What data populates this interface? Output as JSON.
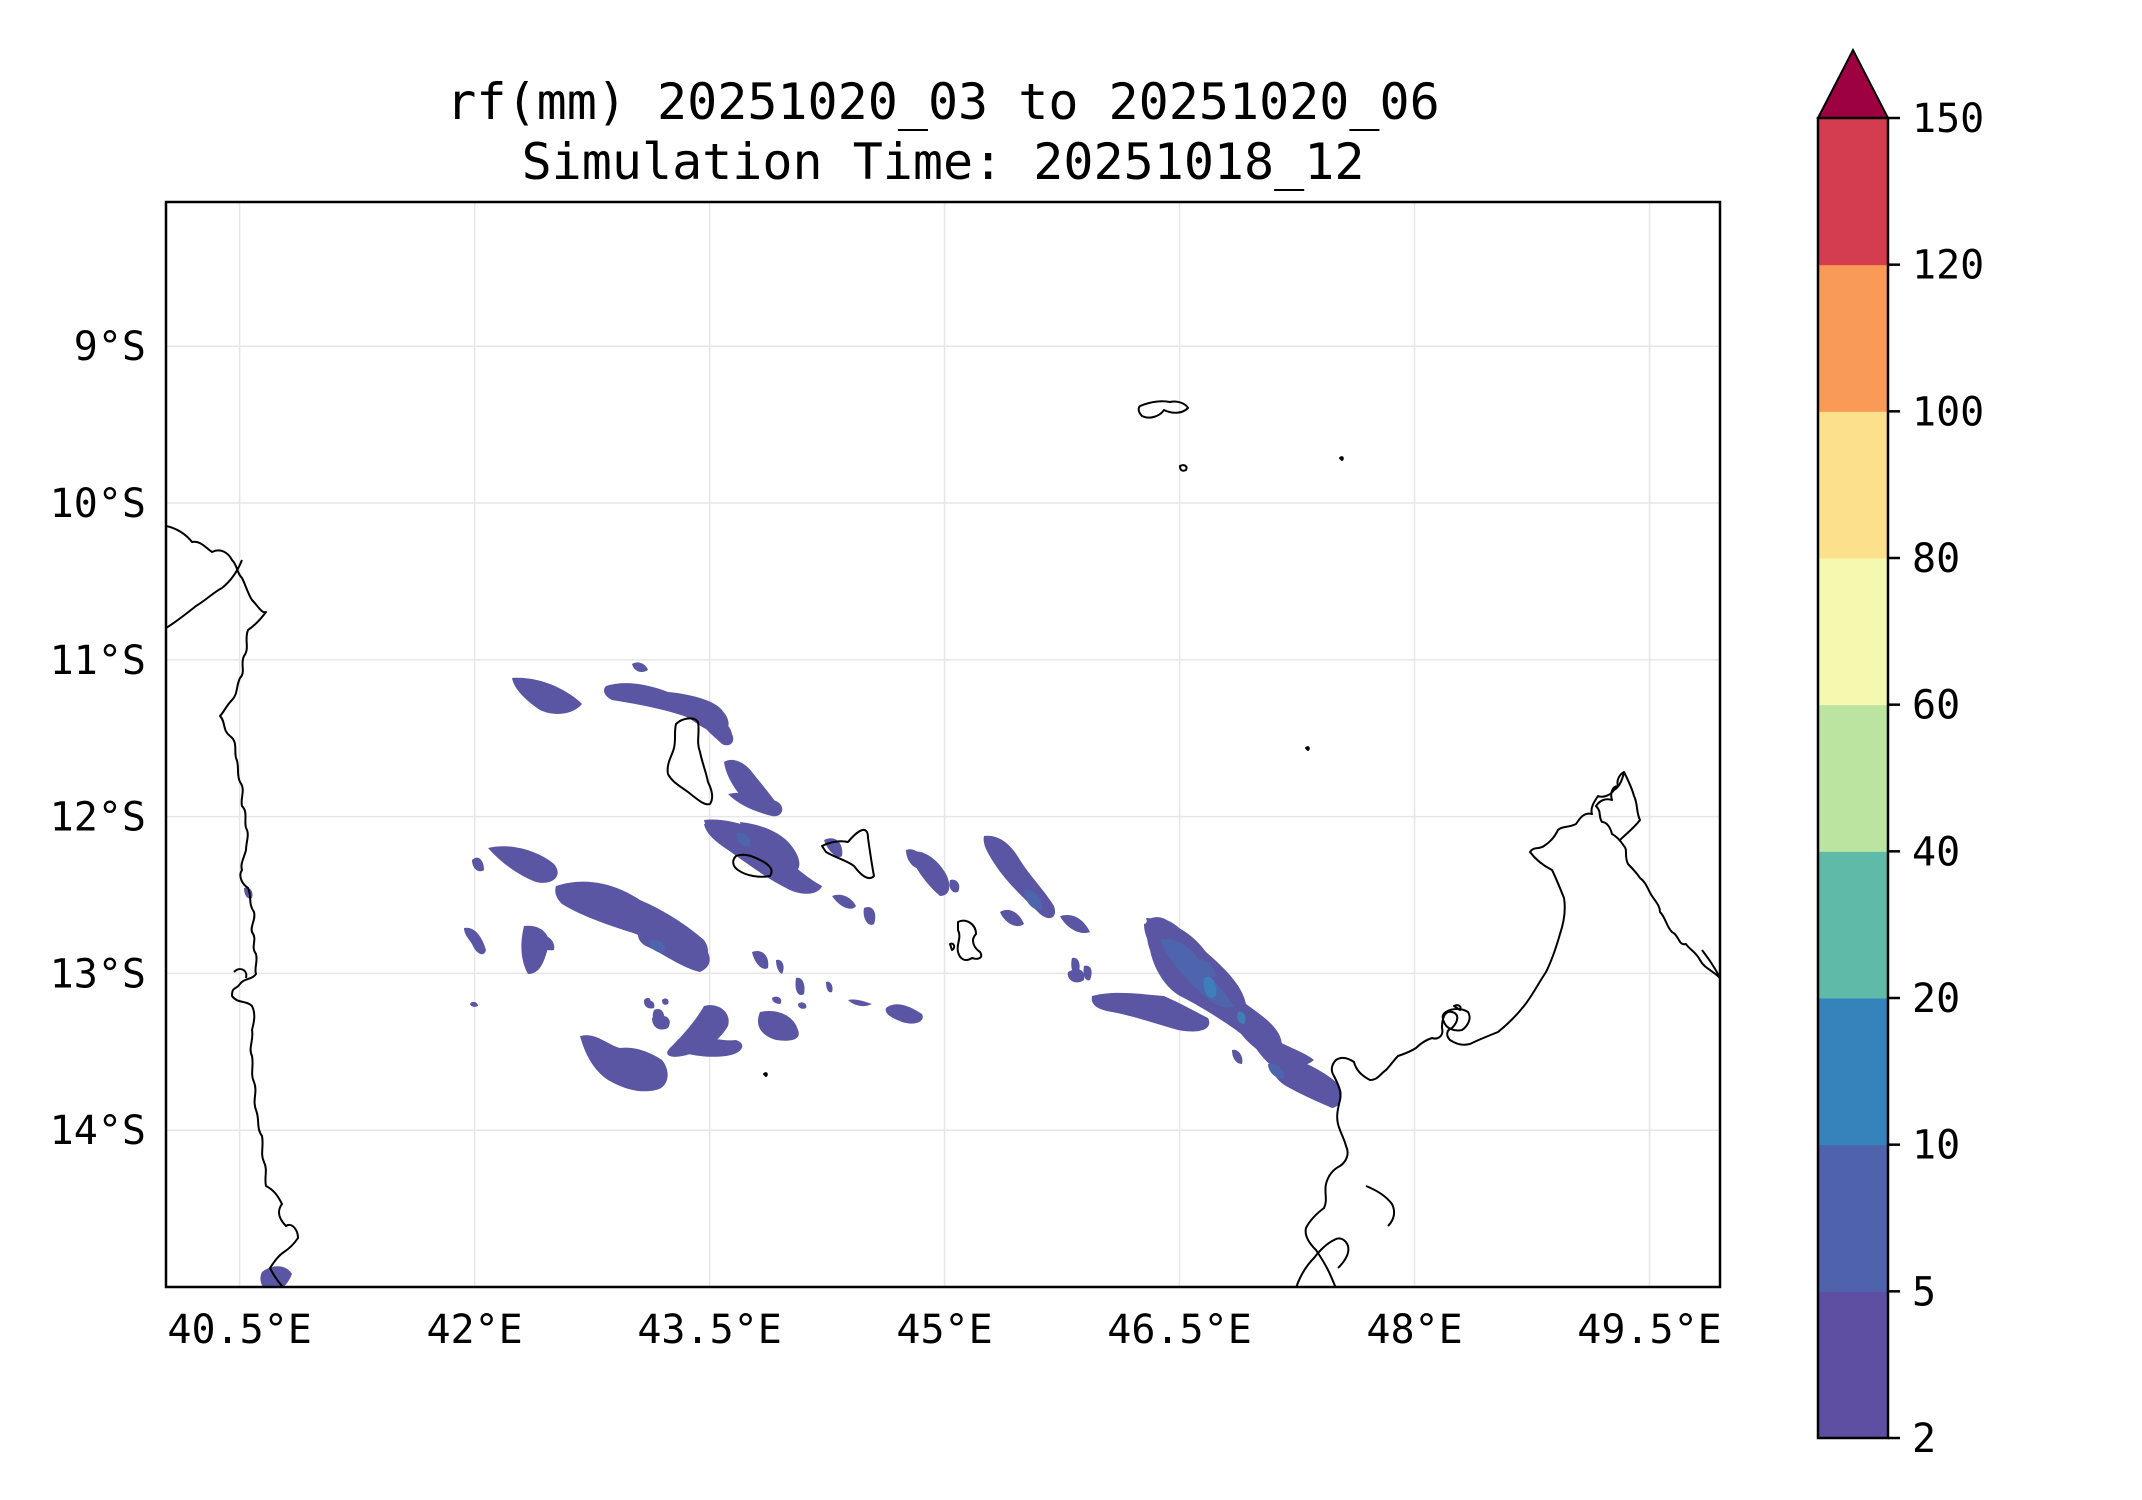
{
  "title": {
    "line1": "rf(mm) 20251020_03 to 20251020_06",
    "line2": "Simulation Time: 20251018_12"
  },
  "map": {
    "lon_ticks": [
      {
        "value": 40.5,
        "label": "40.5°E"
      },
      {
        "value": 42.0,
        "label": "42°E"
      },
      {
        "value": 43.5,
        "label": "43.5°E"
      },
      {
        "value": 45.0,
        "label": "45°E"
      },
      {
        "value": 46.5,
        "label": "46.5°E"
      },
      {
        "value": 48.0,
        "label": "48°E"
      },
      {
        "value": 49.5,
        "label": "49.5°E"
      }
    ],
    "lat_ticks": [
      {
        "value": -9,
        "label": "9°S"
      },
      {
        "value": -10,
        "label": "10°S"
      },
      {
        "value": -11,
        "label": "11°S"
      },
      {
        "value": -12,
        "label": "12°S"
      },
      {
        "value": -13,
        "label": "13°S"
      },
      {
        "value": -14,
        "label": "14°S"
      }
    ],
    "lon_range": [
      40.03,
      49.95
    ],
    "lat_range": [
      -15.0,
      -8.08
    ],
    "grid": true,
    "land_outline_color": "#000000"
  },
  "colorbar": {
    "levels": [
      2,
      5,
      10,
      20,
      40,
      60,
      80,
      100,
      120,
      150
    ],
    "labels": [
      "2",
      "5",
      "10",
      "20",
      "40",
      "60",
      "80",
      "100",
      "120",
      "150"
    ],
    "colors": [
      "#5e4fa2",
      "#4f63ac",
      "#3682ba",
      "#5fbaa8",
      "#bbe4a0",
      "#f5f9b0",
      "#fde08b",
      "#f99a57",
      "#d43d4f"
    ],
    "extend_max_color": "#9e0142",
    "extend": "max"
  },
  "rain_color": "#5a56a4",
  "rain_color_mid": "#4e64ad",
  "rain_color_high": "#3f7fb9"
}
